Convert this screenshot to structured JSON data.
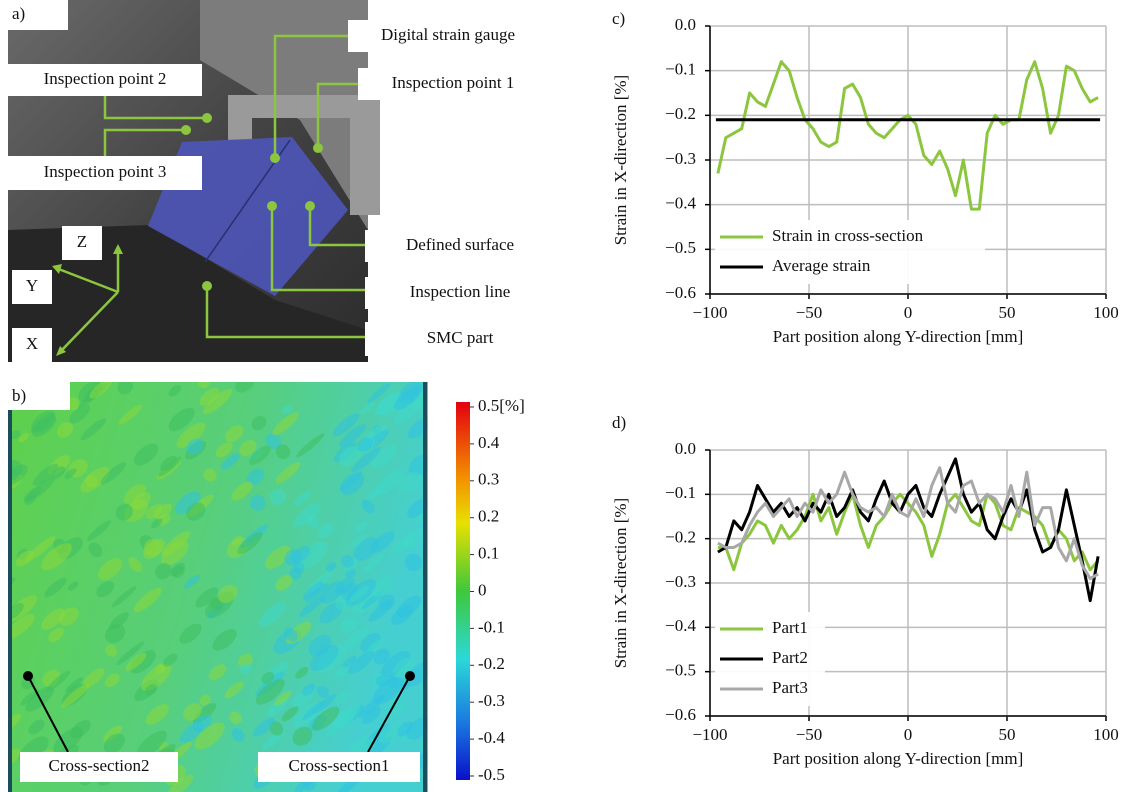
{
  "photo": {
    "panel_label": "a)",
    "annotations": [
      "Digital strain gauge",
      "Inspection point 1",
      "Inspection point 2",
      "Inspection point 3",
      "Defined surface",
      "Inspection line",
      "SMC part"
    ],
    "axes": [
      "Z",
      "Y",
      "X"
    ]
  },
  "strain_map": {
    "panel_label": "b)",
    "colorbar": {
      "lim": [
        -0.5,
        0.5
      ],
      "ticks": [
        {
          "value": 0.5,
          "label": "0.5[%]"
        },
        0.4,
        0.3,
        0.2,
        0.1,
        0,
        -0.1,
        -0.2,
        -0.3,
        -0.4,
        -0.5
      ]
    },
    "annotations": [
      "Cross-section2",
      "Cross-section1"
    ]
  },
  "chart_data": [
    {
      "type": "line",
      "panel_label": "c)",
      "xlabel": "Part position along Y-direction [mm]",
      "ylabel": "Strain in X-direction [%]",
      "xlim": [
        -100,
        100
      ],
      "ylim": [
        -0.6,
        0
      ],
      "xticks": [
        {
          "value": -100,
          "label": "−100"
        },
        {
          "value": -50,
          "label": "−50"
        },
        0,
        50,
        100
      ],
      "yticks": [
        {
          "value": 0,
          "label": "0.0"
        },
        {
          "value": -0.1,
          "label": "−0.1"
        },
        {
          "value": -0.2,
          "label": "−0.2"
        },
        {
          "value": -0.3,
          "label": "−0.3"
        },
        {
          "value": -0.4,
          "label": "−0.4"
        },
        {
          "value": -0.5,
          "label": "−0.5"
        },
        {
          "value": -0.6,
          "label": "−0.6"
        }
      ],
      "grid": true,
      "legend": "lower left",
      "series": [
        {
          "name": "Strain in cross-section",
          "color": "#8cc63f",
          "x": [
            -96,
            -92,
            -88,
            -84,
            -80,
            -76,
            -72,
            -68,
            -64,
            -60,
            -56,
            -52,
            -48,
            -44,
            -40,
            -36,
            -32,
            -28,
            -24,
            -20,
            -16,
            -12,
            -8,
            -4,
            0,
            4,
            8,
            12,
            16,
            20,
            24,
            28,
            32,
            36,
            40,
            44,
            48,
            52,
            56,
            60,
            64,
            68,
            72,
            76,
            80,
            84,
            88,
            92,
            96
          ],
          "values": [
            -0.33,
            -0.25,
            -0.24,
            -0.23,
            -0.15,
            -0.17,
            -0.18,
            -0.13,
            -0.08,
            -0.1,
            -0.16,
            -0.21,
            -0.23,
            -0.26,
            -0.27,
            -0.26,
            -0.14,
            -0.13,
            -0.16,
            -0.22,
            -0.24,
            -0.25,
            -0.23,
            -0.21,
            -0.2,
            -0.22,
            -0.29,
            -0.31,
            -0.28,
            -0.32,
            -0.38,
            -0.3,
            -0.41,
            -0.41,
            -0.24,
            -0.2,
            -0.22,
            -0.21,
            -0.21,
            -0.12,
            -0.08,
            -0.14,
            -0.24,
            -0.2,
            -0.09,
            -0.1,
            -0.14,
            -0.17,
            -0.16
          ]
        },
        {
          "name": "Average strain",
          "color": "#000000",
          "x": [
            -97,
            97
          ],
          "values": [
            -0.21,
            -0.21
          ]
        }
      ]
    },
    {
      "type": "line",
      "panel_label": "d)",
      "xlabel": "Part position along Y-direction [mm]",
      "ylabel": "Strain in X-direction [%]",
      "xlim": [
        -100,
        100
      ],
      "ylim": [
        -0.6,
        0
      ],
      "xticks": [
        {
          "value": -100,
          "label": "−100"
        },
        {
          "value": -50,
          "label": "−50"
        },
        0,
        50,
        100
      ],
      "yticks": [
        {
          "value": 0,
          "label": "0.0"
        },
        {
          "value": -0.1,
          "label": "−0.1"
        },
        {
          "value": -0.2,
          "label": "−0.2"
        },
        {
          "value": -0.3,
          "label": "−0.3"
        },
        {
          "value": -0.4,
          "label": "−0.4"
        },
        {
          "value": -0.5,
          "label": "−0.5"
        },
        {
          "value": -0.6,
          "label": "−0.6"
        }
      ],
      "grid": true,
      "legend": "lower left",
      "x": [
        -96,
        -92,
        -88,
        -84,
        -80,
        -76,
        -72,
        -68,
        -64,
        -60,
        -56,
        -52,
        -48,
        -44,
        -40,
        -36,
        -32,
        -28,
        -24,
        -20,
        -16,
        -12,
        -8,
        -4,
        0,
        4,
        8,
        12,
        16,
        20,
        24,
        28,
        32,
        36,
        40,
        44,
        48,
        52,
        56,
        60,
        64,
        68,
        72,
        76,
        80,
        84,
        88,
        92,
        96
      ],
      "series": [
        {
          "name": "Part1",
          "color": "#8cc63f",
          "values": [
            -0.22,
            -0.22,
            -0.27,
            -0.21,
            -0.19,
            -0.16,
            -0.17,
            -0.21,
            -0.17,
            -0.2,
            -0.18,
            -0.15,
            -0.1,
            -0.16,
            -0.13,
            -0.19,
            -0.14,
            -0.1,
            -0.17,
            -0.22,
            -0.17,
            -0.15,
            -0.12,
            -0.1,
            -0.12,
            -0.14,
            -0.17,
            -0.24,
            -0.19,
            -0.12,
            -0.1,
            -0.13,
            -0.16,
            -0.17,
            -0.1,
            -0.12,
            -0.17,
            -0.18,
            -0.13,
            -0.14,
            -0.15,
            -0.17,
            -0.22,
            -0.18,
            -0.2,
            -0.25,
            -0.23,
            -0.27,
            -0.25
          ]
        },
        {
          "name": "Part2",
          "color": "#000000",
          "values": [
            -0.23,
            -0.22,
            -0.16,
            -0.18,
            -0.14,
            -0.08,
            -0.11,
            -0.14,
            -0.12,
            -0.15,
            -0.13,
            -0.16,
            -0.12,
            -0.14,
            -0.1,
            -0.15,
            -0.13,
            -0.09,
            -0.14,
            -0.16,
            -0.11,
            -0.07,
            -0.12,
            -0.14,
            -0.1,
            -0.08,
            -0.13,
            -0.15,
            -0.1,
            -0.06,
            -0.02,
            -0.1,
            -0.14,
            -0.12,
            -0.18,
            -0.2,
            -0.15,
            -0.11,
            -0.14,
            -0.09,
            -0.18,
            -0.23,
            -0.22,
            -0.18,
            -0.09,
            -0.17,
            -0.25,
            -0.34,
            -0.24
          ]
        },
        {
          "name": "Part3",
          "color": "#a8a8a8",
          "values": [
            -0.21,
            -0.22,
            -0.22,
            -0.21,
            -0.17,
            -0.14,
            -0.12,
            -0.15,
            -0.13,
            -0.11,
            -0.15,
            -0.12,
            -0.14,
            -0.09,
            -0.12,
            -0.1,
            -0.05,
            -0.1,
            -0.13,
            -0.14,
            -0.13,
            -0.15,
            -0.1,
            -0.14,
            -0.15,
            -0.11,
            -0.15,
            -0.08,
            -0.04,
            -0.12,
            -0.14,
            -0.08,
            -0.07,
            -0.12,
            -0.1,
            -0.11,
            -0.14,
            -0.08,
            -0.15,
            -0.05,
            -0.17,
            -0.13,
            -0.13,
            -0.22,
            -0.25,
            -0.2,
            -0.26,
            -0.29,
            -0.28
          ]
        }
      ]
    }
  ]
}
